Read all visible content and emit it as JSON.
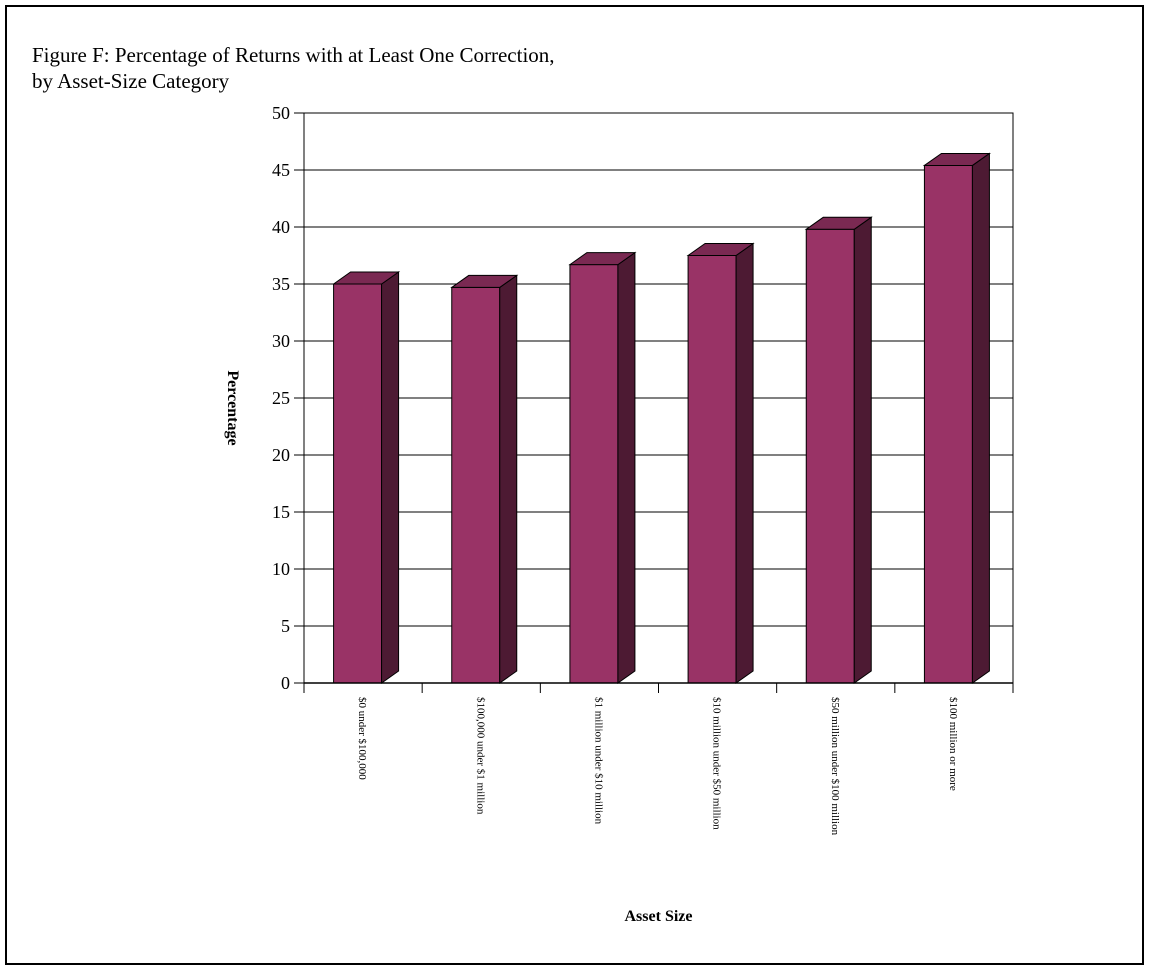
{
  "figure": {
    "title_line1": "Figure F:  Percentage of Returns with at Least One Correction,",
    "title_line2": "by Asset-Size Category"
  },
  "chart_data": {
    "type": "bar",
    "title": "Figure F:  Percentage of Returns with at Least One Correction, by Asset-Size Category",
    "xlabel": "Asset Size",
    "ylabel": "Percentage",
    "categories": [
      "$0 under $100,000",
      "$100,000 under $1 million",
      "$1 million under $10 million",
      "$10 million under $50 million",
      "$50 million under $100 million",
      "$100 million or more"
    ],
    "values": [
      35.0,
      34.7,
      36.7,
      37.5,
      39.8,
      45.4
    ],
    "ylim": [
      0,
      50
    ],
    "yticks": [
      0,
      5,
      10,
      15,
      20,
      25,
      30,
      35,
      40,
      45,
      50
    ],
    "grid": true,
    "legend": "none",
    "colors": {
      "bar_front": "#993366",
      "bar_side": "#4d1a33",
      "bar_top": "#7a2952",
      "edge": "#000000"
    }
  }
}
